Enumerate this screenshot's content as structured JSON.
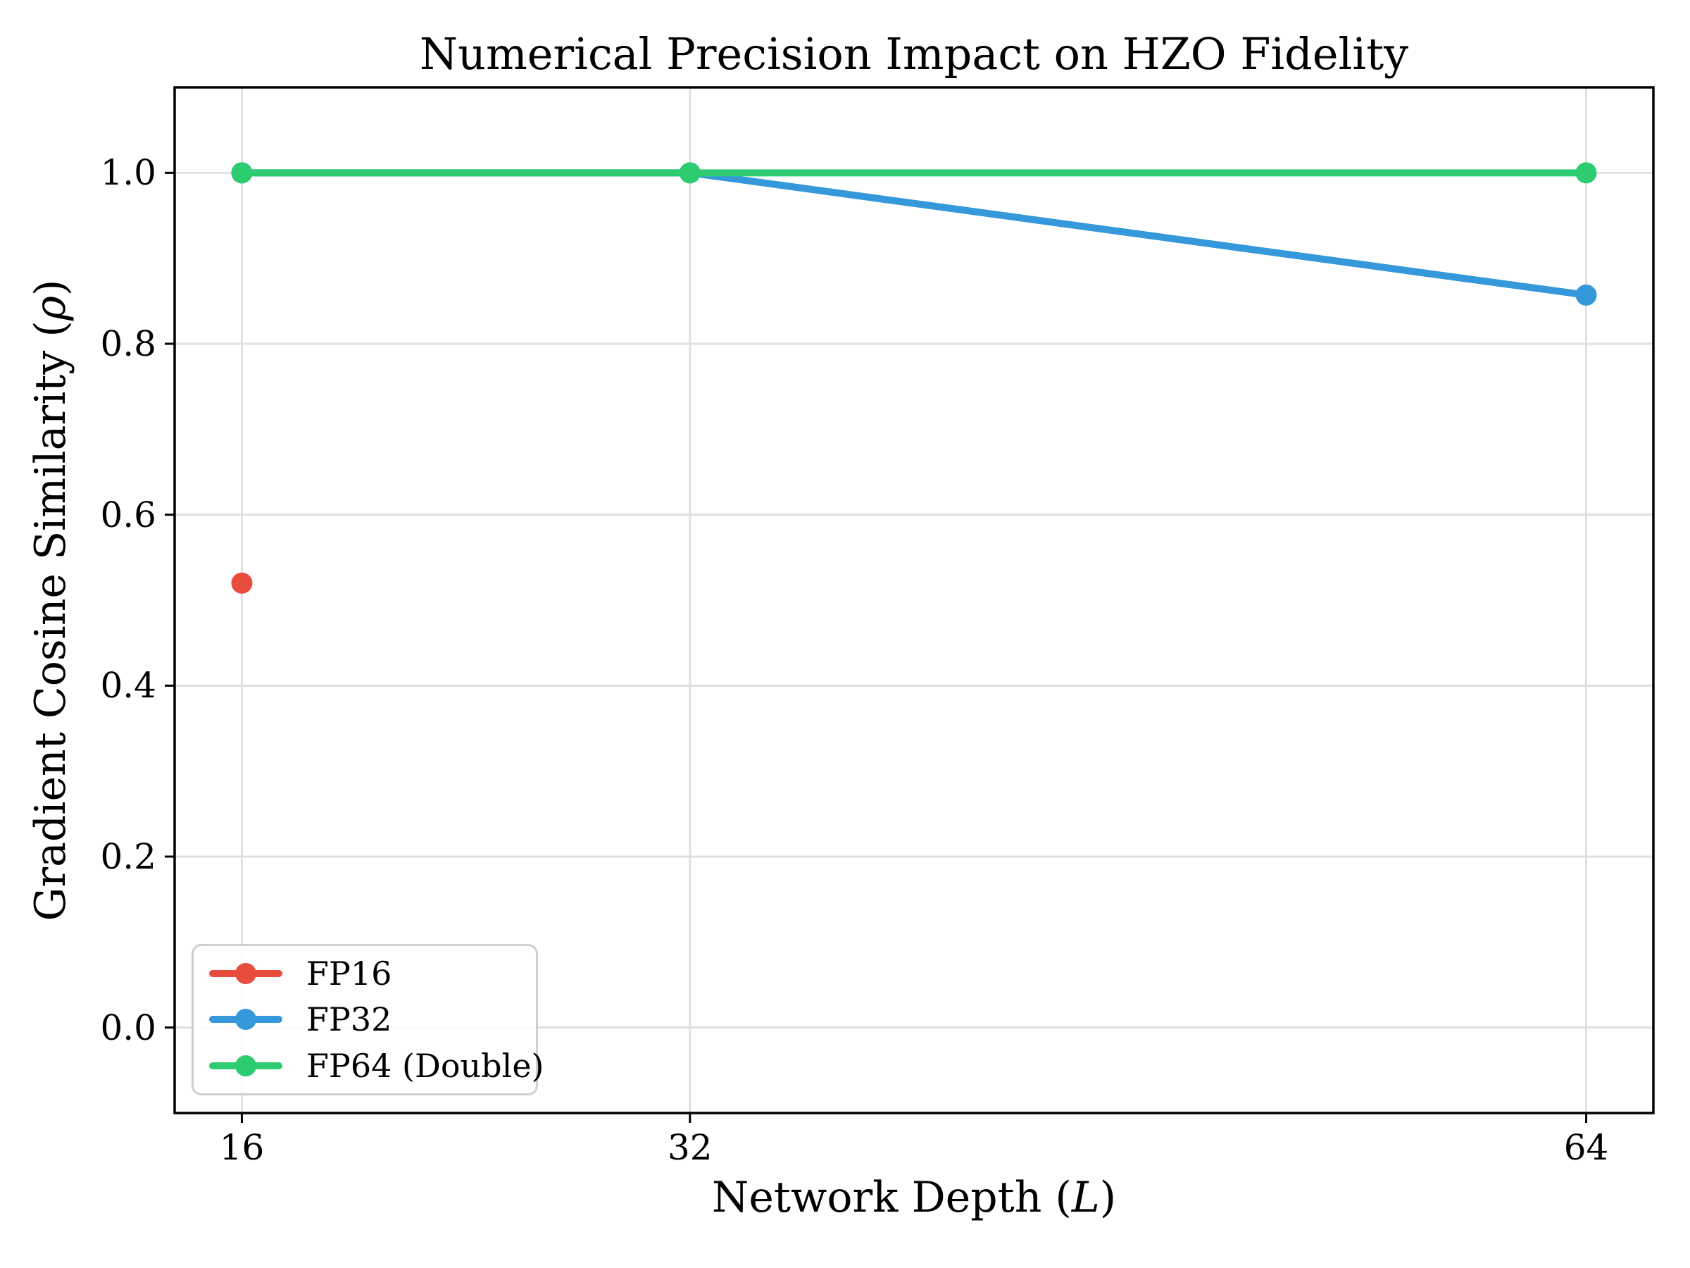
{
  "chart_data": {
    "type": "line",
    "title": "Numerical Precision Impact on HZO Fidelity",
    "xlabel": "Network Depth (L)",
    "ylabel": "Gradient Cosine Similarity (ρ)",
    "xlabel_parts": {
      "pre": "Network Depth (",
      "symbol": "L",
      "post": ")"
    },
    "ylabel_parts": {
      "pre": "Gradient Cosine Similarity (",
      "symbol": "ρ",
      "post": ")"
    },
    "x": [
      16,
      32,
      64
    ],
    "series": [
      {
        "name": "FP16",
        "color": "#e74c3c",
        "values": [
          0.52,
          null,
          null
        ]
      },
      {
        "name": "FP32",
        "color": "#3498db",
        "values": [
          1.0,
          1.0,
          0.857
        ]
      },
      {
        "name": "FP64 (Double)",
        "color": "#2ecc71",
        "values": [
          1.0,
          1.0,
          1.0
        ]
      }
    ],
    "xticks": {
      "values": [
        16,
        32,
        64
      ],
      "labels": [
        "16",
        "32",
        "64"
      ]
    },
    "yticks": {
      "values": [
        0.0,
        0.2,
        0.4,
        0.6,
        0.8,
        1.0
      ],
      "labels": [
        "0.0",
        "0.2",
        "0.4",
        "0.6",
        "0.8",
        "1.0"
      ]
    },
    "xlim": [
      13.6,
      66.4
    ],
    "ylim": [
      -0.1,
      1.1
    ],
    "grid": true,
    "legend": {
      "position": "lower left",
      "entries": [
        "FP16",
        "FP32",
        "FP64 (Double)"
      ]
    },
    "colors": {
      "grid": "#e0e0e0",
      "spine": "#000000",
      "background": "#ffffff",
      "legend_border": "#cfcfcf"
    },
    "marker": "circle",
    "line_width": 10,
    "marker_radius": 15
  }
}
